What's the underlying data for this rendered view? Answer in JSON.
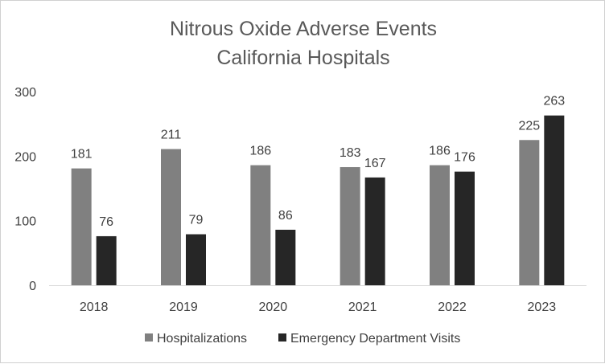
{
  "chart_data": {
    "type": "bar",
    "title": [
      "Nitrous Oxide Adverse Events",
      "California Hospitals"
    ],
    "categories": [
      "2018",
      "2019",
      "2020",
      "2021",
      "2022",
      "2023"
    ],
    "series": [
      {
        "name": "Hospitalizations",
        "color": "#808080",
        "values": [
          181,
          211,
          186,
          183,
          186,
          225
        ]
      },
      {
        "name": "Emergency Department Visits",
        "color": "#262626",
        "values": [
          76,
          79,
          86,
          167,
          176,
          263
        ]
      }
    ],
    "ylim": [
      0,
      300
    ],
    "yticks": [
      0,
      100,
      200,
      300
    ],
    "grid": false,
    "legend": "bottom",
    "xlabel": "",
    "ylabel": ""
  }
}
